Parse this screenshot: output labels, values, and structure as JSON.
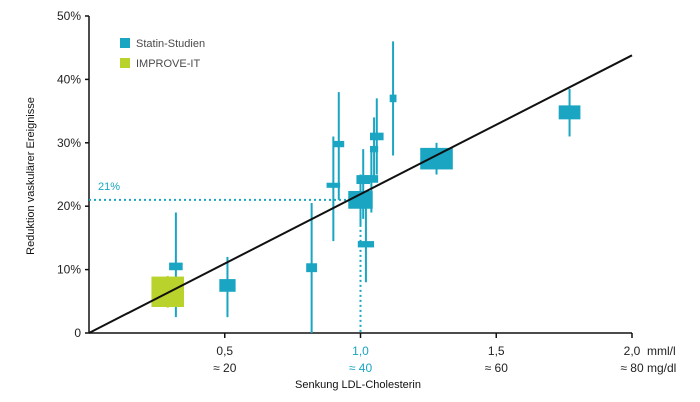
{
  "chart_data": {
    "type": "scatter",
    "title": "",
    "xlabel": "Senkung LDL-Cholesterin",
    "ylabel": "Reduktion vaskulärer Ereignisse",
    "xlim": [
      0,
      2.0
    ],
    "ylim": [
      0,
      50
    ],
    "x_unit_primary": "mml/l",
    "x_unit_secondary": "mg/dl",
    "x_ticks": [
      {
        "value": 0.5,
        "label": "0,5",
        "sub": "≈ 20",
        "highlight": false
      },
      {
        "value": 1.0,
        "label": "1,0",
        "sub": "≈ 40",
        "highlight": true
      },
      {
        "value": 1.5,
        "label": "1,5",
        "sub": "≈ 60",
        "highlight": false
      },
      {
        "value": 2.0,
        "label": "2,0",
        "sub": "≈ 80",
        "highlight": false
      }
    ],
    "y_ticks": [
      {
        "value": 0,
        "label": "0"
      },
      {
        "value": 10,
        "label": "10%"
      },
      {
        "value": 20,
        "label": "20%"
      },
      {
        "value": 30,
        "label": "30%"
      },
      {
        "value": 40,
        "label": "40%"
      },
      {
        "value": 50,
        "label": "50%"
      }
    ],
    "legend": [
      {
        "name": "Statin-Studien",
        "color": "#1aa5c2"
      },
      {
        "name": "IMPROVE-IT",
        "color": "#b9d32c"
      }
    ],
    "trend_line": {
      "x": [
        0,
        2.0
      ],
      "y": [
        0,
        43.8
      ],
      "color": "#111111"
    },
    "reference": {
      "x": 1.0,
      "y": 21,
      "label": "21%",
      "color": "#1aa5c2"
    },
    "series": [
      {
        "name": "Statin-Studien",
        "color": "#1aa5c2",
        "points": [
          {
            "x": 0.32,
            "y": 10.5,
            "lo": 2.5,
            "hi": 19,
            "w": 0.05,
            "h": 1.2
          },
          {
            "x": 0.51,
            "y": 7.5,
            "lo": 2.5,
            "hi": 12,
            "w": 0.06,
            "h": 2.0
          },
          {
            "x": 0.82,
            "y": 10.3,
            "lo": 0,
            "hi": 20.5,
            "w": 0.04,
            "h": 1.4
          },
          {
            "x": 0.9,
            "y": 23.3,
            "lo": 14.5,
            "hi": 31,
            "w": 0.05,
            "h": 0.8
          },
          {
            "x": 0.92,
            "y": 29.8,
            "lo": 21,
            "hi": 38,
            "w": 0.04,
            "h": 1.0
          },
          {
            "x": 1.0,
            "y": 21.0,
            "lo": 17,
            "hi": 25,
            "w": 0.09,
            "h": 2.8
          },
          {
            "x": 1.01,
            "y": 24.2,
            "lo": 18,
            "hi": 29,
            "w": 0.05,
            "h": 1.4
          },
          {
            "x": 1.02,
            "y": 14.0,
            "lo": 8,
            "hi": 20,
            "w": 0.06,
            "h": 1.0
          },
          {
            "x": 1.04,
            "y": 24.3,
            "lo": 19,
            "hi": 29,
            "w": 0.05,
            "h": 1.2
          },
          {
            "x": 1.06,
            "y": 31.0,
            "lo": 25,
            "hi": 37,
            "w": 0.05,
            "h": 1.2
          },
          {
            "x": 1.05,
            "y": 29.0,
            "lo": 24,
            "hi": 34,
            "w": 0.03,
            "h": 1.0
          },
          {
            "x": 1.12,
            "y": 37.0,
            "lo": 28,
            "hi": 46,
            "w": 0.025,
            "h": 1.2
          },
          {
            "x": 1.28,
            "y": 27.5,
            "lo": 25,
            "hi": 30,
            "w": 0.12,
            "h": 3.4
          },
          {
            "x": 1.77,
            "y": 34.8,
            "lo": 31,
            "hi": 38.5,
            "w": 0.08,
            "h": 2.2
          }
        ]
      },
      {
        "name": "IMPROVE-IT",
        "color": "#b9d32c",
        "points": [
          {
            "x": 0.29,
            "y": 6.5,
            "lo": 4,
            "hi": 9,
            "w": 0.12,
            "h": 4.8
          }
        ]
      }
    ]
  }
}
